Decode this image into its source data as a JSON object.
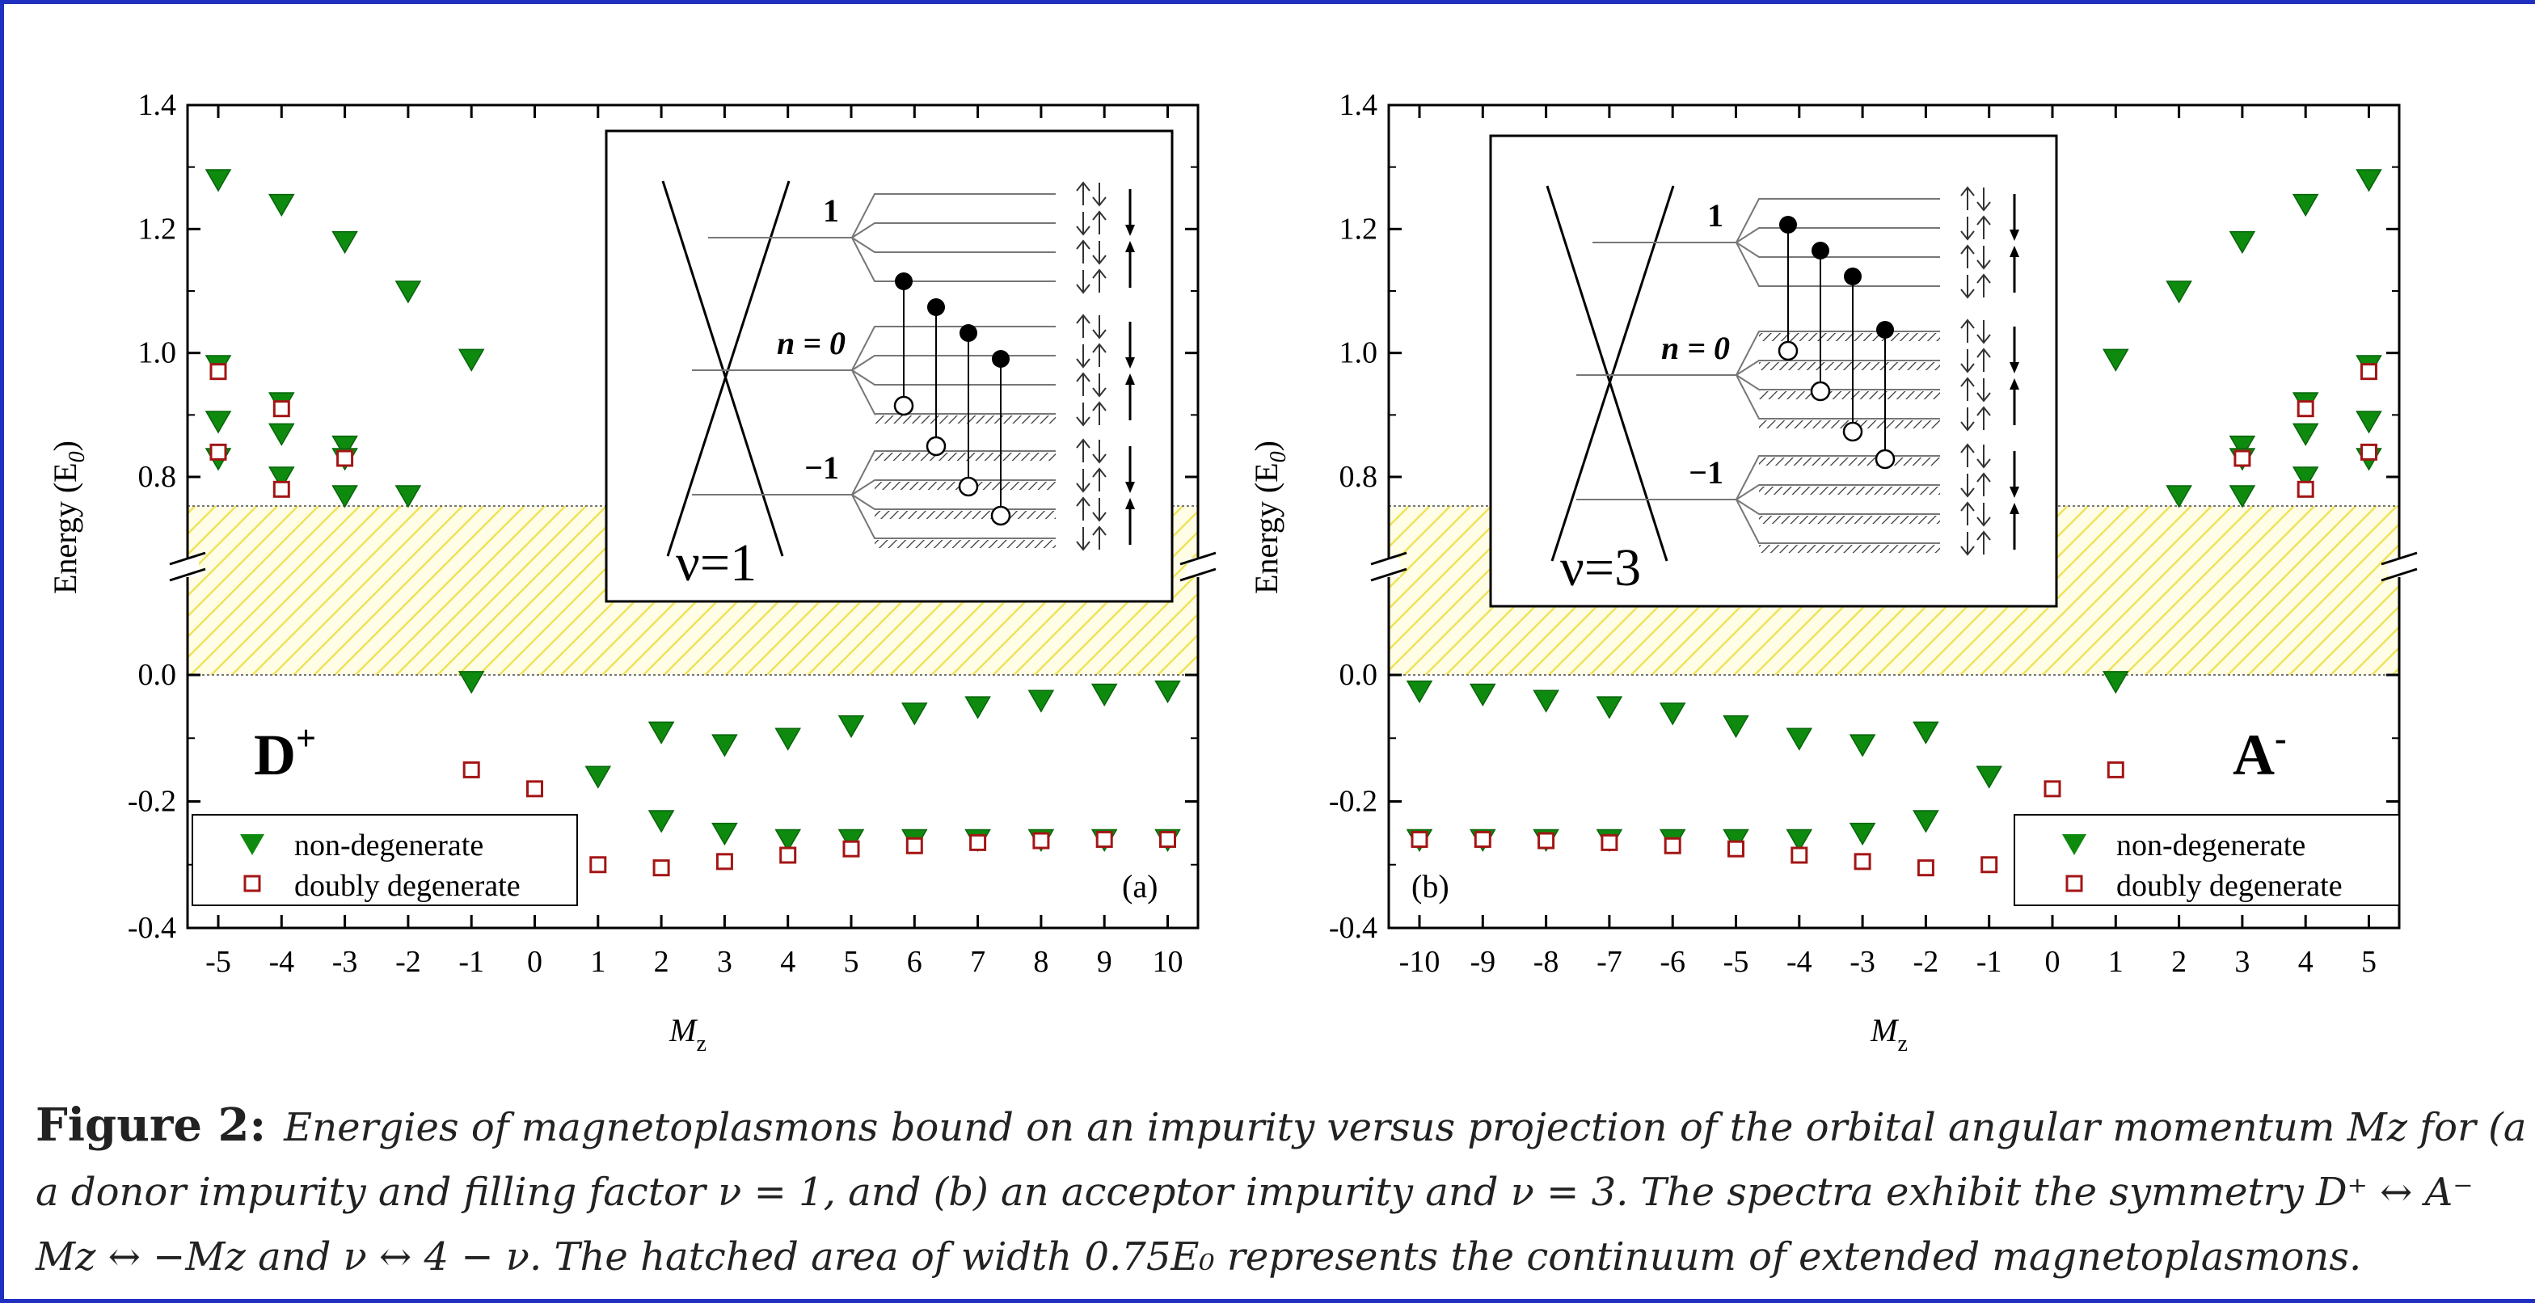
{
  "figure": {
    "label": "Figure 2:",
    "caption_lines": [
      "Energies of magnetoplasmons bound on an impurity versus projection of the orbital angular momentum Mz for (a",
      "a donor impurity and filling factor ν = 1, and (b) an acceptor impurity and ν = 3. The spectra exhibit the symmetry D⁺ ↔ A⁻",
      "Mz ↔ −Mz and ν ↔ 4 − ν. The hatched area of width 0.75E₀ represents the continuum of extended magnetoplasmons."
    ]
  },
  "colors": {
    "nondeg": "#0e8a0e",
    "deg": "#a31515",
    "hatch": "#f2ea7a",
    "frame": "#1f2fbf"
  },
  "chart_data": [
    {
      "type": "scatter",
      "panel": "(a)",
      "impurity_label": "D",
      "impurity_sup": "+",
      "xlabel": "M",
      "xlabel_sub": "z",
      "ylabel": "Energy (E",
      "ylabel_sub": "0",
      "ylabel_end": ")",
      "y_ticks_upper": [
        "0.8",
        "1.0",
        "1.2",
        "1.4"
      ],
      "y_ticks_lower": [
        "-0.4",
        "-0.2",
        "0.0"
      ],
      "x_ticks": [
        "-5",
        "-4",
        "-3",
        "-2",
        "-1",
        "0",
        "1",
        "2",
        "3",
        "4",
        "5",
        "6",
        "7",
        "8",
        "9",
        "10"
      ],
      "axis_break_between": [
        0.0,
        0.75
      ],
      "hatched_continuum": [
        0.0,
        0.75
      ],
      "legend_position": "bottom-left",
      "series": [
        {
          "name": "non-degenerate",
          "marker": "triangle-down",
          "x": [
            -5,
            -5,
            -5,
            -5,
            -4,
            -4,
            -4,
            -4,
            -3,
            -3,
            -3,
            -3,
            -2,
            -2,
            -1,
            -1,
            1,
            2,
            2,
            3,
            3,
            4,
            4,
            5,
            5,
            6,
            6,
            7,
            7,
            8,
            8,
            9,
            9,
            10,
            10
          ],
          "y": [
            1.28,
            0.98,
            0.89,
            0.83,
            1.24,
            0.92,
            0.87,
            0.8,
            1.18,
            0.85,
            0.83,
            0.77,
            1.1,
            0.77,
            0.99,
            -0.01,
            -0.16,
            -0.09,
            -0.23,
            -0.11,
            -0.25,
            -0.1,
            -0.26,
            -0.08,
            -0.26,
            -0.06,
            -0.26,
            -0.05,
            -0.26,
            -0.04,
            -0.26,
            -0.03,
            -0.26,
            -0.025,
            -0.26
          ]
        },
        {
          "name": "doubly degenerate",
          "marker": "square-open",
          "x": [
            -5,
            -5,
            -4,
            -4,
            -3,
            -1,
            0,
            1,
            2,
            3,
            4,
            5,
            6,
            7,
            8,
            9,
            10
          ],
          "y": [
            0.97,
            0.84,
            0.91,
            0.78,
            0.83,
            -0.15,
            -0.18,
            -0.3,
            -0.305,
            -0.295,
            -0.285,
            -0.275,
            -0.27,
            -0.265,
            -0.262,
            -0.26,
            -0.26
          ]
        }
      ],
      "inset": {
        "nu_label": "ν=1",
        "levels": [
          "1",
          "n = 0",
          "−1"
        ],
        "transitions": [
          [
            -1,
            0
          ],
          [
            -1,
            0
          ],
          [
            -1,
            0
          ],
          [
            -1,
            0
          ]
        ]
      }
    },
    {
      "type": "scatter",
      "panel": "(b)",
      "impurity_label": "A",
      "impurity_sup": "-",
      "xlabel": "M",
      "xlabel_sub": "z",
      "ylabel": "Energy (E",
      "ylabel_sub": "0",
      "ylabel_end": ")",
      "y_ticks_upper": [
        "0.8",
        "1.0",
        "1.2",
        "1.4"
      ],
      "y_ticks_lower": [
        "-0.4",
        "-0.2",
        "0.0"
      ],
      "x_ticks": [
        "-10",
        "-9",
        "-8",
        "-7",
        "-6",
        "-5",
        "-4",
        "-3",
        "-2",
        "-1",
        "0",
        "1",
        "2",
        "3",
        "4",
        "5"
      ],
      "axis_break_between": [
        0.0,
        0.75
      ],
      "hatched_continuum": [
        0.0,
        0.75
      ],
      "legend_position": "bottom-right",
      "series": [
        {
          "name": "non-degenerate",
          "marker": "triangle-down",
          "x": [
            -10,
            -10,
            -9,
            -9,
            -8,
            -8,
            -7,
            -7,
            -6,
            -6,
            -5,
            -5,
            -4,
            -4,
            -3,
            -3,
            -2,
            -2,
            -1,
            1,
            1,
            2,
            2,
            3,
            3,
            3,
            3,
            4,
            4,
            4,
            4,
            5,
            5,
            5,
            5
          ],
          "y": [
            -0.025,
            -0.26,
            -0.03,
            -0.26,
            -0.04,
            -0.26,
            -0.05,
            -0.26,
            -0.06,
            -0.26,
            -0.08,
            -0.26,
            -0.1,
            -0.26,
            -0.11,
            -0.25,
            -0.09,
            -0.23,
            -0.16,
            -0.01,
            0.99,
            1.1,
            0.77,
            1.18,
            0.85,
            0.83,
            0.77,
            1.24,
            0.92,
            0.87,
            0.8,
            1.28,
            0.98,
            0.89,
            0.83
          ]
        },
        {
          "name": "doubly degenerate",
          "marker": "square-open",
          "x": [
            -10,
            -9,
            -8,
            -7,
            -6,
            -5,
            -4,
            -3,
            -2,
            -1,
            0,
            1,
            3,
            4,
            4,
            5,
            5
          ],
          "y": [
            -0.26,
            -0.26,
            -0.262,
            -0.265,
            -0.27,
            -0.275,
            -0.285,
            -0.295,
            -0.305,
            -0.3,
            -0.18,
            -0.15,
            0.83,
            0.91,
            0.78,
            0.97,
            0.84
          ]
        }
      ],
      "inset": {
        "nu_label": "ν=3",
        "levels": [
          "1",
          "n = 0",
          "−1"
        ],
        "transitions": [
          [
            0,
            1
          ],
          [
            0,
            1
          ],
          [
            0,
            1
          ],
          [
            0,
            1
          ]
        ]
      }
    }
  ]
}
